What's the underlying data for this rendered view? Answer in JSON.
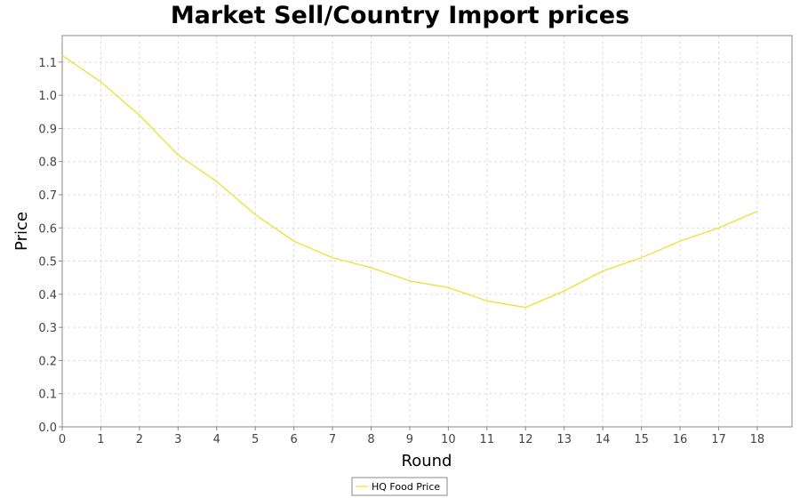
{
  "chart_data": {
    "type": "line",
    "title": "Market Sell/Country Import prices",
    "xlabel": "Round",
    "ylabel": "Price",
    "xlim": [
      0,
      18.9
    ],
    "ylim": [
      0,
      1.18
    ],
    "xticks": [
      0,
      1,
      2,
      3,
      4,
      5,
      6,
      7,
      8,
      9,
      10,
      11,
      12,
      13,
      14,
      15,
      16,
      17,
      18
    ],
    "yticks": [
      0.0,
      0.1,
      0.2,
      0.3,
      0.4,
      0.5,
      0.6,
      0.7,
      0.8,
      0.9,
      1.0,
      1.1
    ],
    "grid": true,
    "legend_position": "bottom-center",
    "series": [
      {
        "name": "HQ Food Price",
        "color": "#f2dd30",
        "x": [
          0,
          1,
          2,
          3,
          4,
          5,
          6,
          7,
          8,
          9,
          10,
          11,
          12,
          13,
          14,
          15,
          16,
          17,
          18
        ],
        "y": [
          1.12,
          1.04,
          0.94,
          0.82,
          0.74,
          0.64,
          0.56,
          0.51,
          0.48,
          0.44,
          0.42,
          0.38,
          0.36,
          0.41,
          0.47,
          0.51,
          0.56,
          0.6,
          0.65
        ]
      }
    ]
  }
}
